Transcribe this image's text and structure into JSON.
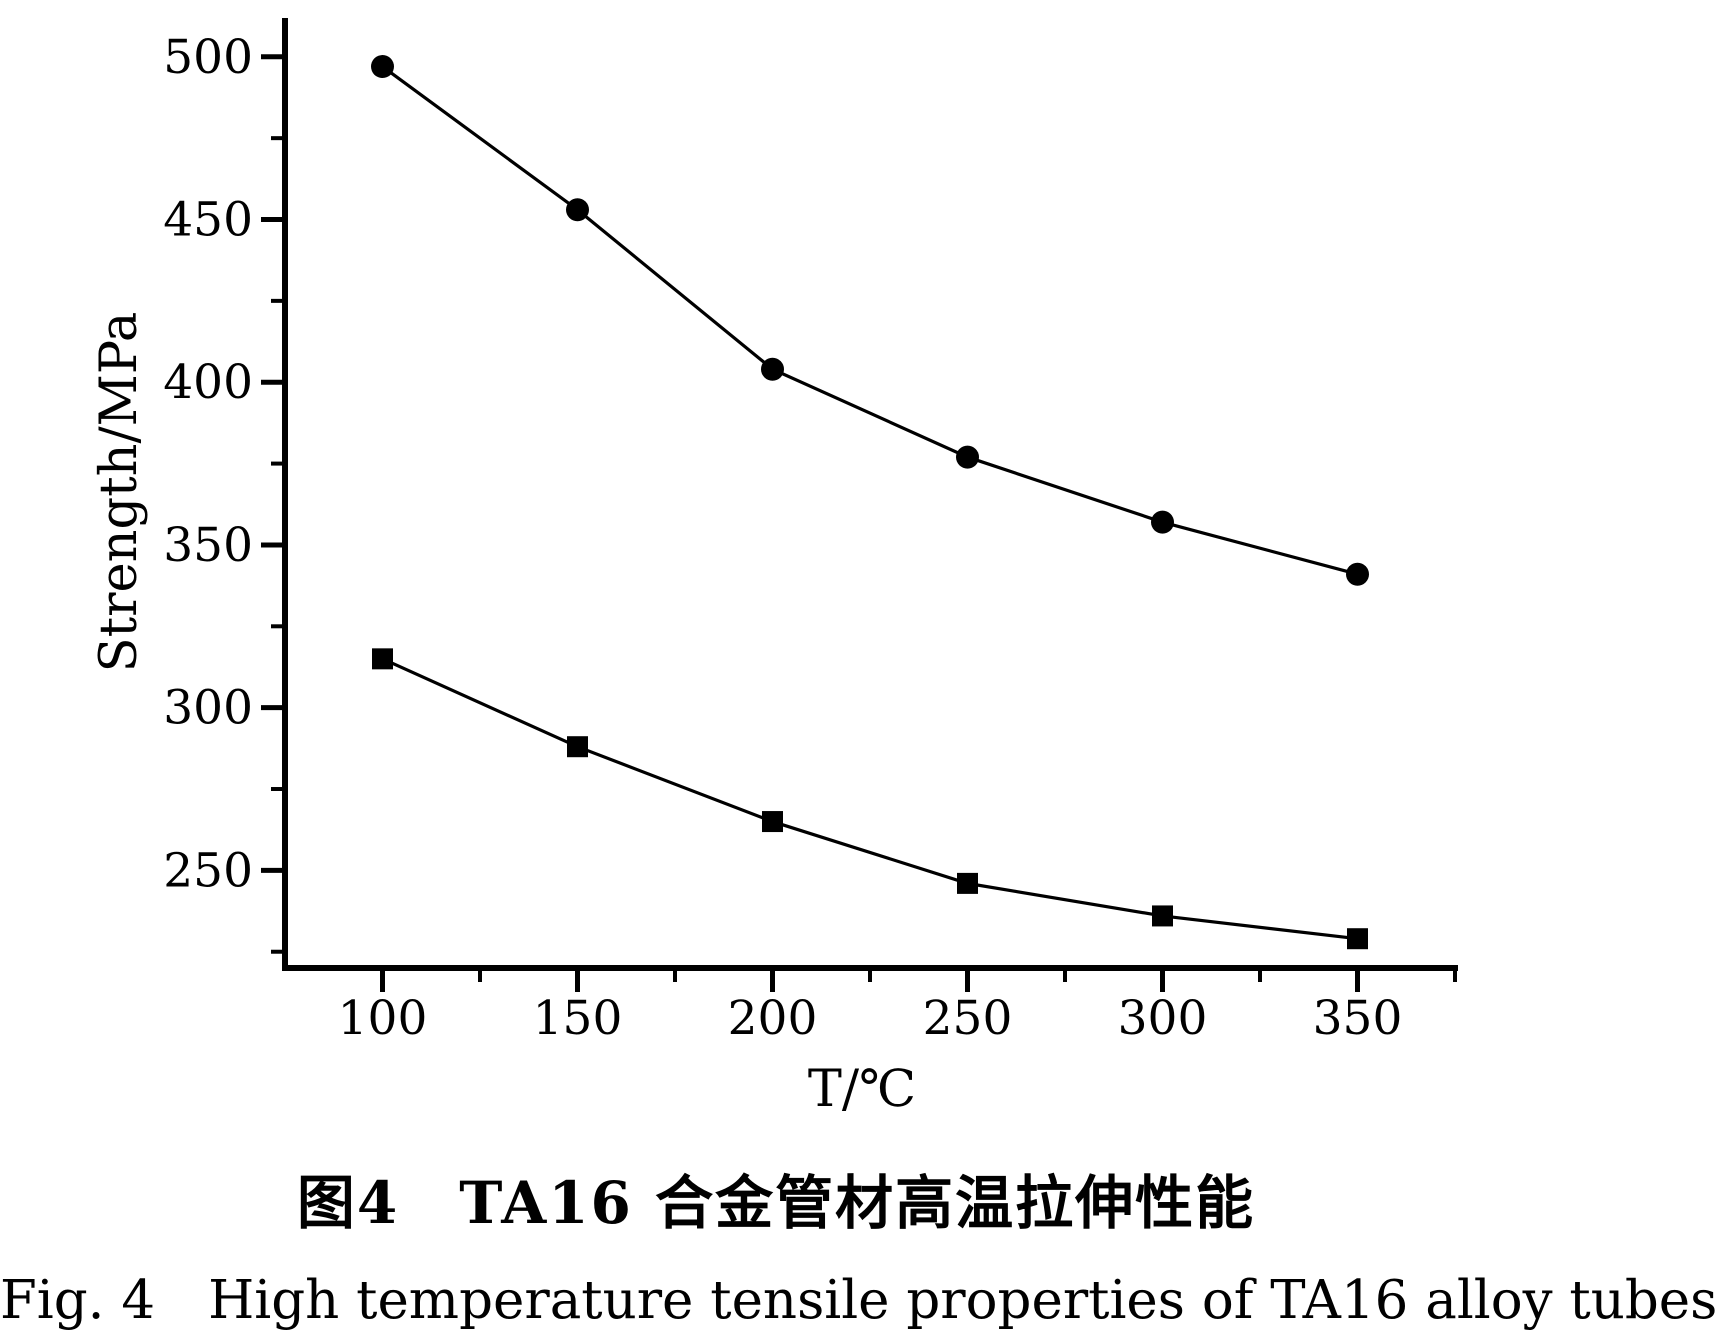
{
  "figure": {
    "caption_zh": "图4　TA16 合金管材高温拉伸性能",
    "caption_en": "Fig. 4　High temperature tensile properties of TA16 alloy tubes"
  },
  "chart_data": {
    "type": "line",
    "title": "",
    "xlabel": "T/℃",
    "ylabel": "Strength/MPa",
    "x": [
      100,
      150,
      200,
      250,
      300,
      350
    ],
    "series": [
      {
        "name": "upper-curve-circle-markers",
        "marker": "circle",
        "values": [
          497,
          453,
          404,
          377,
          357,
          341
        ]
      },
      {
        "name": "lower-curve-square-markers",
        "marker": "square",
        "values": [
          315,
          288,
          265,
          246,
          236,
          229
        ]
      }
    ],
    "xlim": [
      75,
      375
    ],
    "ylim": [
      220,
      511
    ],
    "x_major_ticks": [
      100,
      150,
      200,
      250,
      300,
      350
    ],
    "x_minor_ticks": [
      125,
      175,
      225,
      275,
      325,
      375
    ],
    "y_major_ticks": [
      250,
      300,
      350,
      400,
      450,
      500
    ],
    "y_minor_ticks": [
      225,
      275,
      325,
      375,
      425,
      475
    ],
    "grid": false,
    "legend": "none",
    "line_color": "#000000",
    "marker_color": "#000000",
    "axis_color": "#000000",
    "background": "#ffffff"
  }
}
